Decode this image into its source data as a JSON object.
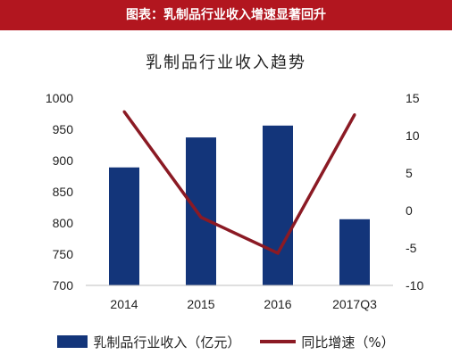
{
  "header": {
    "title": "图表：乳制品行业收入增速显著回升"
  },
  "chart_data": {
    "type": "bar",
    "title": "乳制品行业收入趋势",
    "categories": [
      "2014",
      "2015",
      "2016",
      "2017Q3"
    ],
    "series": [
      {
        "name": "乳制品行业收入（亿元）",
        "type": "bar",
        "axis": "left",
        "values": [
          889,
          937,
          956,
          806
        ],
        "color": "#13357a"
      },
      {
        "name": "同比增速（%）",
        "type": "line",
        "axis": "right",
        "values": [
          13.2,
          -0.9,
          -5.7,
          12.8
        ],
        "color": "#8b1a24"
      }
    ],
    "y_left": {
      "ylim": [
        700,
        1000
      ],
      "ticks": [
        "700",
        "750",
        "800",
        "850",
        "900",
        "950",
        "1000"
      ]
    },
    "y_right": {
      "ylim": [
        -10,
        15
      ],
      "ticks": [
        "-10",
        "-5",
        "0",
        "5",
        "10",
        "15"
      ]
    },
    "legend": {
      "position": "bottom"
    },
    "grid": false
  }
}
